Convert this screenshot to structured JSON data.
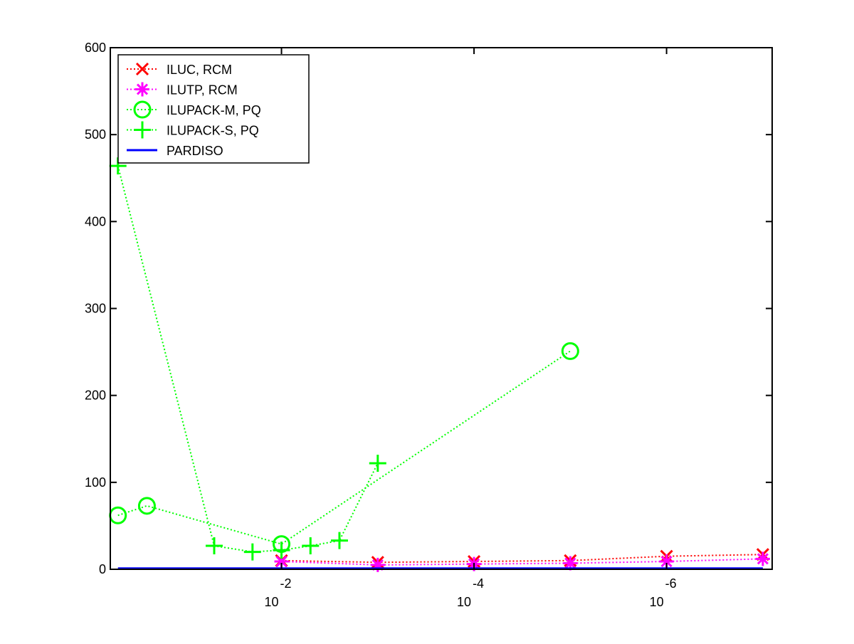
{
  "chart_data": {
    "type": "line",
    "xscale": "log",
    "xreverse": true,
    "xlim": [
      0.6,
      8e-08
    ],
    "xticks": [
      {
        "value": 0.01,
        "label": "10",
        "exponent": "-2"
      },
      {
        "value": 0.0001,
        "label": "10",
        "exponent": "-4"
      },
      {
        "value": 1e-06,
        "label": "10",
        "exponent": "-6"
      }
    ],
    "ylim": [
      0,
      600
    ],
    "yticks": [
      0,
      100,
      200,
      300,
      400,
      500,
      600
    ],
    "legend": "upper-left",
    "series": [
      {
        "name": "ILUC, RCM",
        "color": "#ff0000",
        "marker": "x",
        "x": [
          0.01,
          0.001,
          0.0001,
          1e-05,
          1e-06,
          1e-07
        ],
        "values": [
          10,
          8,
          9,
          10,
          15,
          17
        ]
      },
      {
        "name": "ILUTP, RCM",
        "color": "#ff00ff",
        "marker": "star",
        "x": [
          0.01,
          0.001,
          0.0001,
          1e-05,
          1e-06,
          1e-07
        ],
        "values": [
          9,
          5,
          6,
          7,
          9,
          12
        ]
      },
      {
        "name": "ILUPACK-M, PQ",
        "color": "#00ff00",
        "marker": "circle",
        "x": [
          0.5,
          0.25,
          0.01,
          1e-05
        ],
        "values": [
          62,
          73,
          29,
          251
        ]
      },
      {
        "name": "ILUPACK-S, PQ",
        "color": "#00ff00",
        "marker": "plus",
        "x": [
          0.5,
          0.05,
          0.02,
          0.01,
          0.005,
          0.0025,
          0.001
        ],
        "values": [
          464,
          27,
          20,
          22,
          27,
          33,
          122
        ]
      },
      {
        "name": "PARDISO",
        "color": "#0000ff",
        "marker": "none",
        "x": [
          0.5,
          1e-07
        ],
        "values": [
          1,
          1
        ]
      }
    ]
  }
}
